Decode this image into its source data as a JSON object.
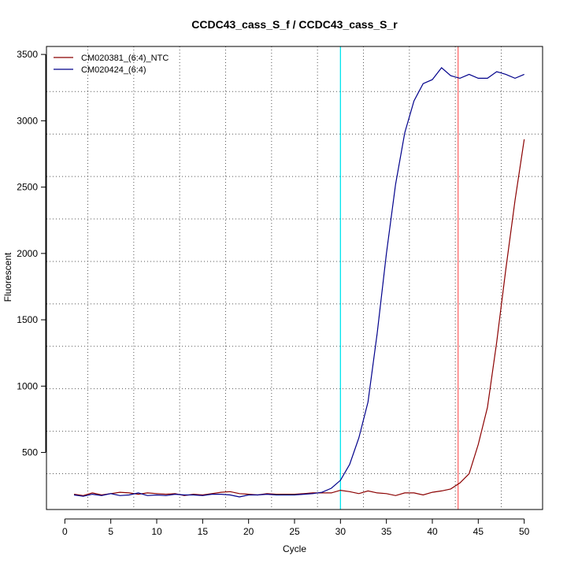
{
  "chart_data": {
    "type": "line",
    "title": "CCDC43_cass_S_f / CCDC43_cass_S_r",
    "xlabel": "Cycle",
    "ylabel": "Fluorescent",
    "xlim": [
      -2,
      52
    ],
    "ylim": [
      70,
      3560
    ],
    "x_ticks": [
      0,
      5,
      10,
      15,
      20,
      25,
      30,
      35,
      40,
      45,
      50
    ],
    "y_ticks": [
      500,
      1000,
      1500,
      2000,
      2500,
      3000,
      3500
    ],
    "x_tick_labels": [
      "0",
      "5",
      "10",
      "15",
      "20",
      "25",
      "30",
      "35",
      "40",
      "45",
      "50"
    ],
    "y_tick_labels": [
      "500",
      "1000",
      "1500",
      "2000",
      "2500",
      "3000",
      "3500"
    ],
    "vertical_dotted_x": [
      2.5,
      7.5,
      12.5,
      17.5,
      22.5,
      27.5,
      32.5,
      37.5,
      42.5,
      47.5
    ],
    "horizontal_dotted_y": [
      340,
      660,
      980,
      1300,
      1620,
      1940,
      2260,
      2580,
      2900,
      3220
    ],
    "threshold_lines": [
      {
        "x": 30,
        "color": "#00e5ee"
      },
      {
        "x": 42.8,
        "color": "#ff6a6a"
      }
    ],
    "grid": true,
    "legend_position": "top-left",
    "x": [
      1,
      2,
      3,
      4,
      5,
      6,
      7,
      8,
      9,
      10,
      11,
      12,
      13,
      14,
      15,
      16,
      17,
      18,
      19,
      20,
      21,
      22,
      23,
      24,
      25,
      26,
      27,
      28,
      29,
      30,
      31,
      32,
      33,
      34,
      35,
      36,
      37,
      38,
      39,
      40,
      41,
      42,
      43,
      44,
      45,
      46,
      47,
      48,
      49,
      50
    ],
    "series": [
      {
        "name": "CM020381_(6:4)_NTC",
        "color": "#8b0000",
        "values": [
          185,
          175,
          195,
          180,
          190,
          200,
          195,
          185,
          195,
          190,
          185,
          190,
          175,
          185,
          180,
          190,
          200,
          205,
          190,
          185,
          180,
          190,
          185,
          185,
          185,
          190,
          195,
          195,
          195,
          215,
          205,
          190,
          210,
          195,
          190,
          175,
          195,
          195,
          180,
          200,
          210,
          225,
          270,
          340,
          560,
          840,
          1330,
          1880,
          2400,
          2860
        ]
      },
      {
        "name": "CM020424_(6:4)",
        "color": "#00008b",
        "values": [
          180,
          170,
          185,
          175,
          190,
          175,
          180,
          195,
          175,
          180,
          175,
          185,
          180,
          180,
          175,
          185,
          185,
          180,
          165,
          180,
          180,
          185,
          180,
          180,
          180,
          185,
          190,
          200,
          230,
          290,
          410,
          610,
          880,
          1400,
          2000,
          2520,
          2910,
          3150,
          3280,
          3310,
          3400,
          3340,
          3320,
          3350,
          3320,
          3320,
          3370,
          3350,
          3320,
          3350
        ]
      }
    ]
  }
}
